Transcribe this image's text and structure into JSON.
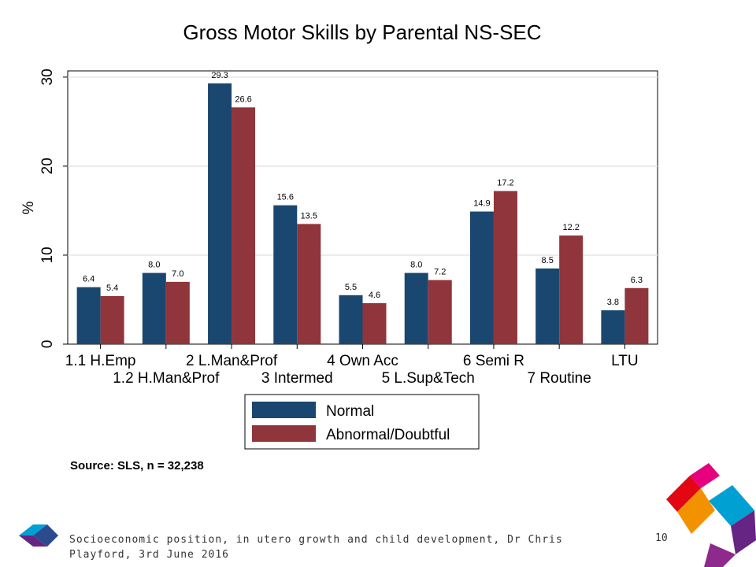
{
  "chart_data": {
    "type": "bar",
    "title": "Gross Motor Skills by Parental NS-SEC",
    "ylabel": "%",
    "xlabel": "",
    "ylim": [
      0,
      30.7
    ],
    "yticks": [
      0,
      10,
      20,
      30
    ],
    "grid": true,
    "categories": [
      "1.1 H.Emp",
      "1.2 H.Man&Prof",
      "2 L.Man&Prof",
      "3 Intermed",
      "4 Own Acc",
      "5 L.Sup&Tech",
      "6 Semi R",
      "7 Routine",
      "LTU"
    ],
    "series": [
      {
        "name": "Normal",
        "color": "#1a476f",
        "values": [
          6.4,
          8.0,
          29.3,
          15.6,
          5.5,
          8.0,
          14.9,
          8.5,
          3.8
        ],
        "labels": [
          "6.4",
          "8.0",
          "29.3",
          "15.6",
          "5.5",
          "8.0",
          "14.9",
          "8.5",
          "3.8"
        ]
      },
      {
        "name": "Abnormal/Doubtful",
        "color": "#90353b",
        "values": [
          5.4,
          7.0,
          26.6,
          13.5,
          4.6,
          7.2,
          17.2,
          12.2,
          6.3
        ],
        "labels": [
          "5.4",
          "7.0",
          "26.6",
          "13.5",
          "4.6",
          "7.2",
          "17.2",
          "12.2",
          "6.3"
        ]
      }
    ],
    "legend_position": "bottom",
    "note": "Source: SLS, n = 32,238"
  },
  "footer": {
    "text": "Socioeconomic position, in utero growth and child development, Dr Chris Playford, 3rd June 2016",
    "page_number": "10"
  },
  "logos": {
    "small": "kite-logo-icon",
    "large": "chevron-logo-icon",
    "colors": [
      "#e6007e",
      "#f39200",
      "#00a0d2",
      "#662483",
      "#e30613"
    ]
  }
}
